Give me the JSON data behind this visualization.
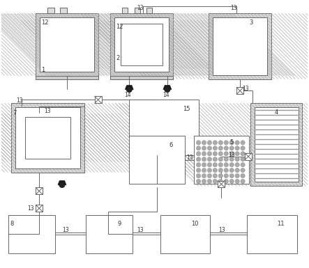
{
  "figsize": [
    4.43,
    3.85
  ],
  "dpi": 100,
  "lc": "#666666",
  "lw": 0.7,
  "hatch_fc": "#d8d8d8",
  "white": "#ffffff",
  "gray_med": "#b0b0b0",
  "pump_c": "#222222",
  "label_fs": 6.0
}
